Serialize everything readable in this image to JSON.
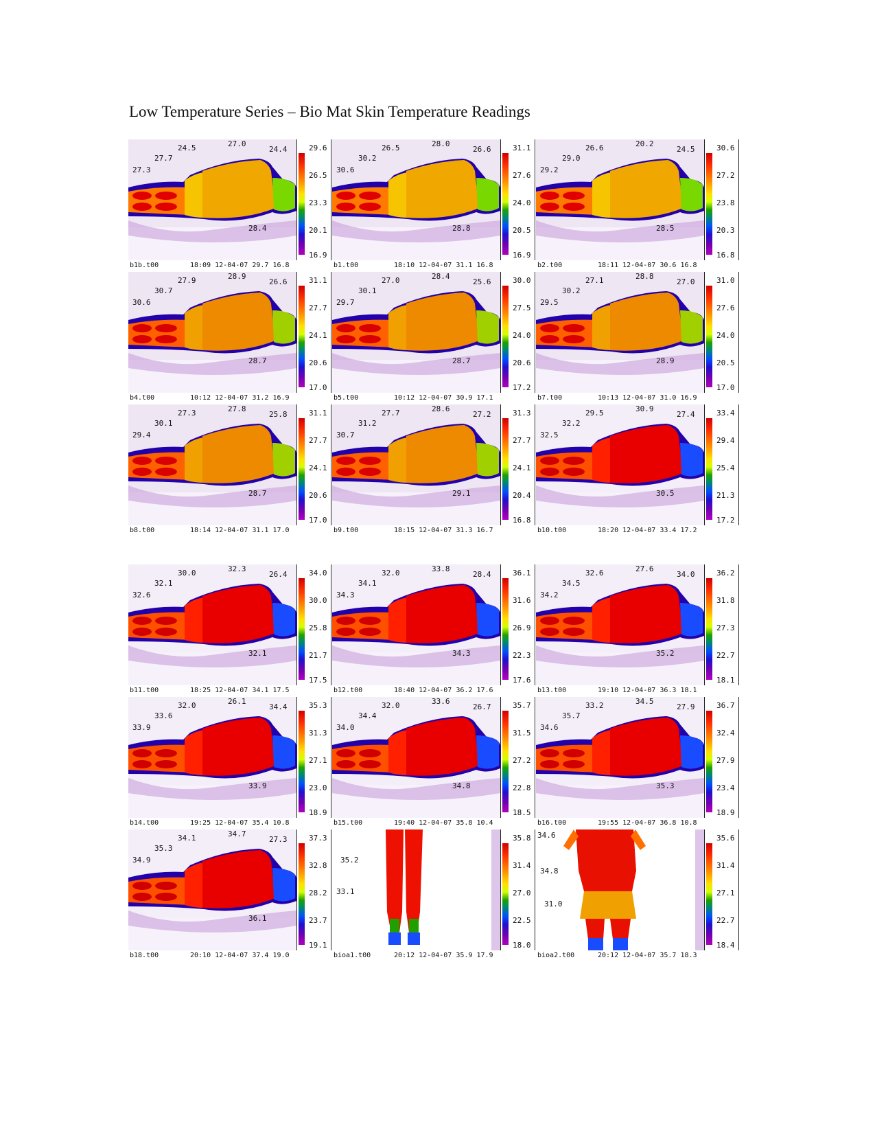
{
  "title": "Low Temperature Series – Bio Mat Skin Temperature Readings",
  "panels": [
    {
      "file": "b1b.t00",
      "time": "18:09",
      "date": "12-04-07",
      "max": "29.7",
      "min": "16.8",
      "scale": [
        "29.6",
        "26.5",
        "23.3",
        "20.1",
        "16.9"
      ],
      "labels": [
        "27.3",
        "27.7",
        "24.5",
        "27.0",
        "24.4",
        "28.4"
      ],
      "view": "side",
      "heat": "cool"
    },
    {
      "file": "b1.t00",
      "time": "18:10",
      "date": "12-04-07",
      "max": "31.1",
      "min": "16.8",
      "scale": [
        "31.1",
        "27.6",
        "24.0",
        "20.5",
        "16.9"
      ],
      "labels": [
        "30.6",
        "30.2",
        "26.5",
        "28.0",
        "26.6",
        "28.8"
      ],
      "view": "side",
      "heat": "cool"
    },
    {
      "file": "b2.t00",
      "time": "18:11",
      "date": "12-04-07",
      "max": "30.6",
      "min": "16.8",
      "scale": [
        "30.6",
        "27.2",
        "23.8",
        "20.3",
        "16.8"
      ],
      "labels": [
        "29.2",
        "29.0",
        "26.6",
        "20.2",
        "24.5",
        "28.5"
      ],
      "view": "side",
      "heat": "cool"
    },
    {
      "file": "b4.t00",
      "time": "10:12",
      "date": "12-04-07",
      "max": "31.2",
      "min": "16.9",
      "scale": [
        "31.1",
        "27.7",
        "24.1",
        "20.6",
        "17.0"
      ],
      "labels": [
        "30.6",
        "30.7",
        "27.9",
        "28.9",
        "26.6",
        "28.7"
      ],
      "view": "side",
      "heat": "warm"
    },
    {
      "file": "b5.t00",
      "time": "10:12",
      "date": "12-04-07",
      "max": "30.9",
      "min": "17.1",
      "scale": [
        "30.0",
        "27.5",
        "24.0",
        "20.6",
        "17.2"
      ],
      "labels": [
        "29.7",
        "30.1",
        "27.0",
        "28.4",
        "25.6",
        "28.7"
      ],
      "view": "side",
      "heat": "warm"
    },
    {
      "file": "b7.t00",
      "time": "10:13",
      "date": "12-04-07",
      "max": "31.0",
      "min": "16.9",
      "scale": [
        "31.0",
        "27.6",
        "24.0",
        "20.5",
        "17.0"
      ],
      "labels": [
        "29.5",
        "30.2",
        "27.1",
        "28.8",
        "27.0",
        "28.9"
      ],
      "view": "side",
      "heat": "warm"
    },
    {
      "file": "b8.t00",
      "time": "18:14",
      "date": "12-04-07",
      "max": "31.1",
      "min": "17.0",
      "scale": [
        "31.1",
        "27.7",
        "24.1",
        "20.6",
        "17.0"
      ],
      "labels": [
        "29.4",
        "30.1",
        "27.3",
        "27.8",
        "25.8",
        "28.7"
      ],
      "view": "side",
      "heat": "warm"
    },
    {
      "file": "b9.t00",
      "time": "18:15",
      "date": "12-04-07",
      "max": "31.3",
      "min": "16.7",
      "scale": [
        "31.3",
        "27.7",
        "24.1",
        "20.4",
        "16.8"
      ],
      "labels": [
        "30.7",
        "31.2",
        "27.7",
        "28.6",
        "27.2",
        "29.1"
      ],
      "view": "side",
      "heat": "warm"
    },
    {
      "file": "b10.t00",
      "time": "18:20",
      "date": "12-04-07",
      "max": "33.4",
      "min": "17.2",
      "scale": [
        "33.4",
        "29.4",
        "25.4",
        "21.3",
        "17.2"
      ],
      "labels": [
        "32.5",
        "32.2",
        "29.5",
        "30.9",
        "27.4",
        "30.5"
      ],
      "view": "side",
      "heat": "hot"
    },
    {
      "file": "b11.t00",
      "time": "18:25",
      "date": "12-04-07",
      "max": "34.1",
      "min": "17.5",
      "scale": [
        "34.0",
        "30.0",
        "25.8",
        "21.7",
        "17.5"
      ],
      "labels": [
        "32.6",
        "32.1",
        "30.0",
        "32.3",
        "26.4",
        "32.1"
      ],
      "view": "side",
      "heat": "hot"
    },
    {
      "file": "b12.t00",
      "time": "18:40",
      "date": "12-04-07",
      "max": "36.2",
      "min": "17.6",
      "scale": [
        "36.1",
        "31.6",
        "26.9",
        "22.3",
        "17.6"
      ],
      "labels": [
        "34.3",
        "34.1",
        "32.0",
        "33.8",
        "28.4",
        "34.3"
      ],
      "view": "side",
      "heat": "hot"
    },
    {
      "file": "b13.t00",
      "time": "19:10",
      "date": "12-04-07",
      "max": "36.3",
      "min": "18.1",
      "scale": [
        "36.2",
        "31.8",
        "27.3",
        "22.7",
        "18.1"
      ],
      "labels": [
        "34.2",
        "34.5",
        "32.6",
        "27.6",
        "34.0",
        "35.2"
      ],
      "view": "side",
      "heat": "hot"
    },
    {
      "file": "b14.t00",
      "time": "19:25",
      "date": "12-04-07",
      "max": "35.4",
      "min": "10.8",
      "scale": [
        "35.3",
        "31.3",
        "27.1",
        "23.0",
        "18.9"
      ],
      "labels": [
        "33.9",
        "33.6",
        "32.0",
        "26.1",
        "34.4",
        "33.9"
      ],
      "view": "side",
      "heat": "hot"
    },
    {
      "file": "b15.t00",
      "time": "19:40",
      "date": "12-04-07",
      "max": "35.8",
      "min": "10.4",
      "scale": [
        "35.7",
        "31.5",
        "27.2",
        "22.8",
        "18.5"
      ],
      "labels": [
        "34.0",
        "34.4",
        "32.0",
        "33.6",
        "26.7",
        "34.8"
      ],
      "view": "side",
      "heat": "hot"
    },
    {
      "file": "b16.t00",
      "time": "19:55",
      "date": "12-04-07",
      "max": "36.8",
      "min": "10.8",
      "scale": [
        "36.7",
        "32.4",
        "27.9",
        "23.4",
        "18.9"
      ],
      "labels": [
        "34.6",
        "35.7",
        "33.2",
        "34.5",
        "27.9",
        "35.3"
      ],
      "view": "side",
      "heat": "hot"
    },
    {
      "file": "b18.t00",
      "time": "20:10",
      "date": "12-04-07",
      "max": "37.4",
      "min": "19.0",
      "scale": [
        "37.3",
        "32.8",
        "28.2",
        "23.7",
        "19.1"
      ],
      "labels": [
        "34.9",
        "35.3",
        "34.1",
        "34.7",
        "27.3",
        "36.1"
      ],
      "view": "side",
      "heat": "hot"
    },
    {
      "file": "bioa1.t00",
      "time": "20:12",
      "date": "12-04-07",
      "max": "35.9",
      "min": "17.9",
      "scale": [
        "35.8",
        "31.4",
        "27.0",
        "22.5",
        "18.0"
      ],
      "labels": [
        "35.2",
        "33.1"
      ],
      "view": "legs",
      "heat": "hot"
    },
    {
      "file": "bioa2.t00",
      "time": "20:12",
      "date": "12-04-07",
      "max": "35.7",
      "min": "18.3",
      "scale": [
        "35.6",
        "31.4",
        "27.1",
        "22.7",
        "18.4"
      ],
      "labels": [
        "34.6",
        "34.8",
        "31.0"
      ],
      "view": "back",
      "heat": "hot"
    }
  ]
}
